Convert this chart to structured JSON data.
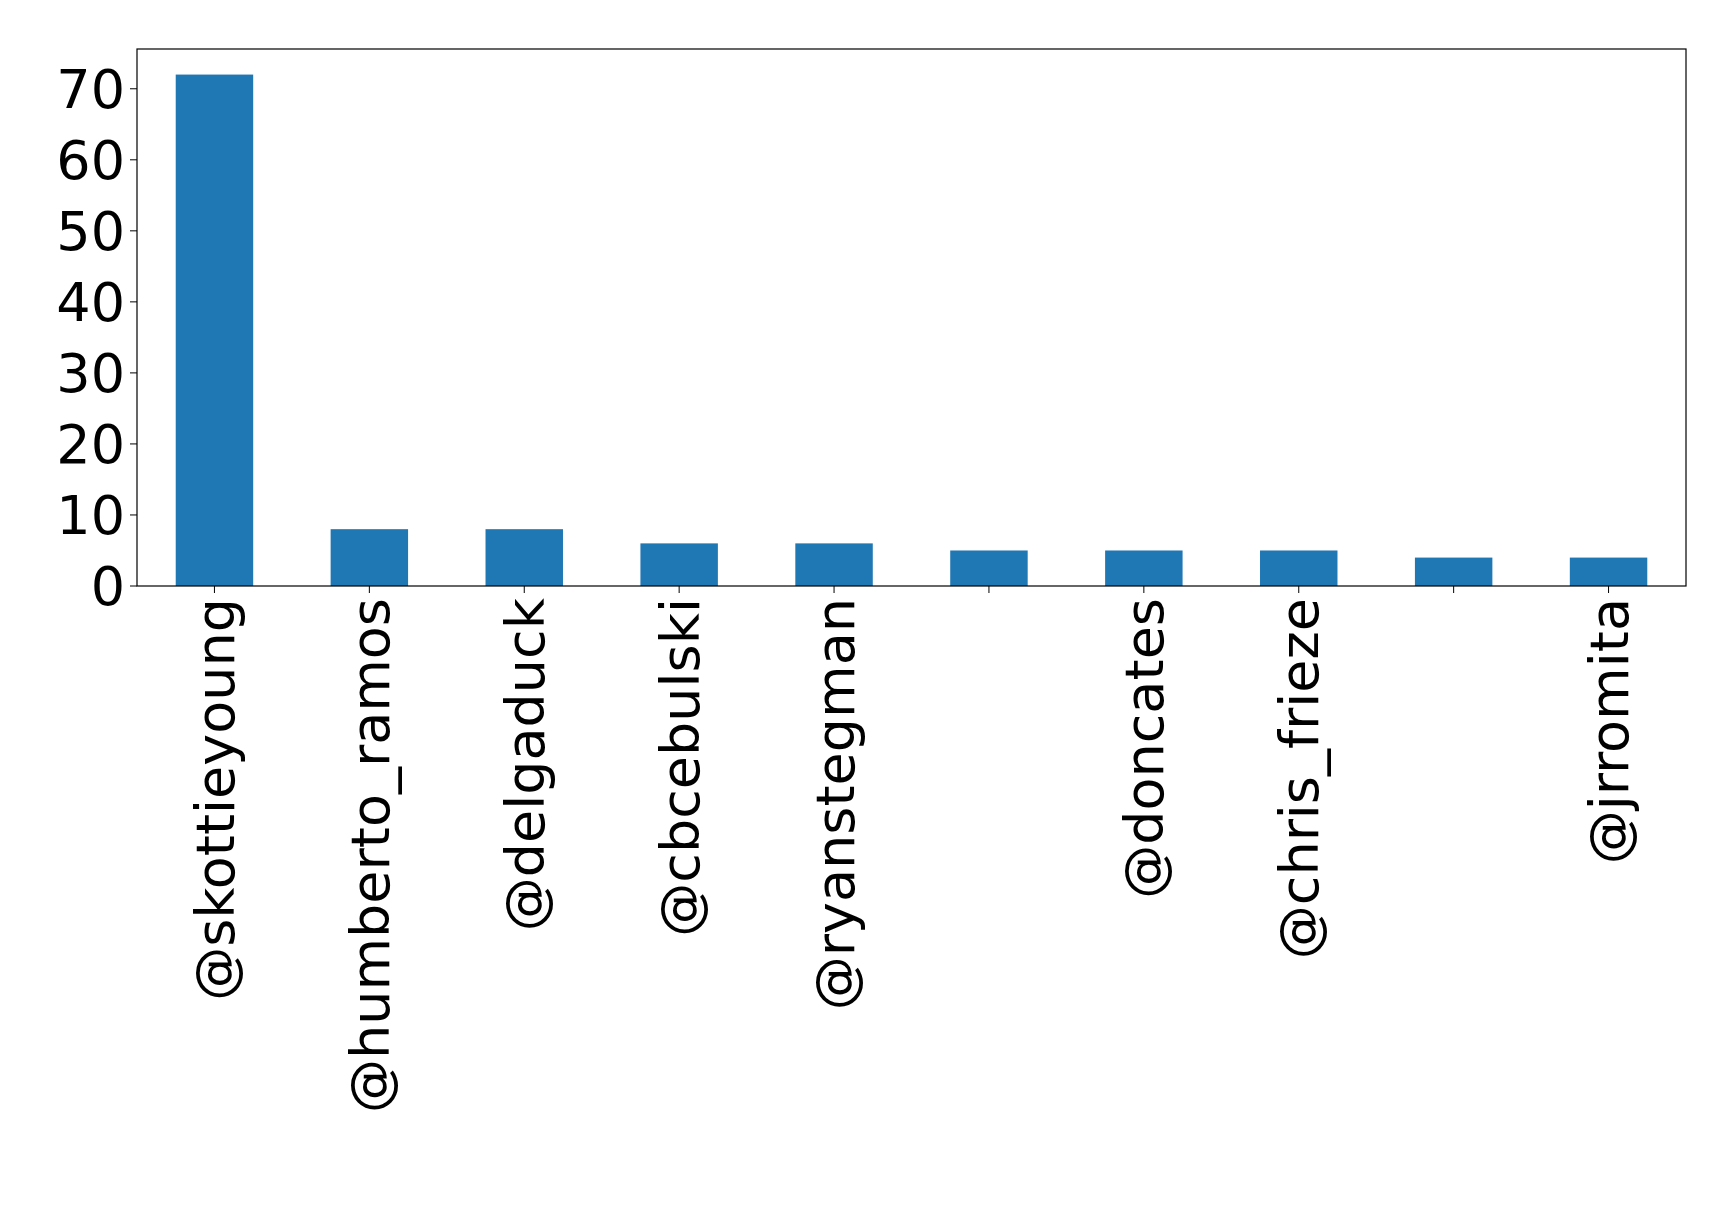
{
  "chart_data": {
    "type": "bar",
    "categories": [
      "@skottieyoung",
      "@humberto_ramos",
      "@delgaduck",
      "@cbcebulski",
      "@ryanstegman",
      null,
      "@doncates",
      "@chris_frieze",
      null,
      "@jrromita"
    ],
    "values": [
      72,
      8,
      8,
      6,
      6,
      5,
      5,
      5,
      4,
      4
    ],
    "color": "#1f77b4",
    "ylim": [
      0,
      75.6
    ],
    "yticks": [
      0,
      10,
      20,
      30,
      40,
      50,
      60,
      70
    ],
    "grid": false
  }
}
